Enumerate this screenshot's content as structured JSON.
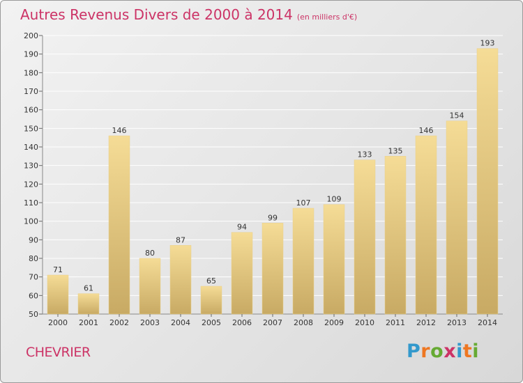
{
  "title": "Autres Revenus Divers de 2000 à 2014",
  "subtitle": "(en milliers d'€)",
  "commune": "CHEVRIER",
  "logo": {
    "text": "Proxiti",
    "letter_colors": [
      "#3399cc",
      "#ee7722",
      "#66aa33",
      "#cc3366",
      "#3399cc",
      "#ee7722",
      "#66aa33"
    ]
  },
  "colors": {
    "title": "#cc3366",
    "bar_top": "#f5dc96",
    "bar_bottom": "#c8aa64",
    "grid": "#ffffff",
    "axis_text": "#333333"
  },
  "chart_data": {
    "type": "bar",
    "title": "Autres Revenus Divers de 2000 à 2014",
    "subtitle": "(en milliers d'€)",
    "categories": [
      "2000",
      "2001",
      "2002",
      "2003",
      "2004",
      "2005",
      "2006",
      "2007",
      "2008",
      "2009",
      "2010",
      "2011",
      "2012",
      "2013",
      "2014"
    ],
    "values": [
      71,
      61,
      146,
      80,
      87,
      65,
      94,
      99,
      107,
      109,
      133,
      135,
      146,
      154,
      193
    ],
    "ylim": [
      50,
      200
    ],
    "yticks": [
      50,
      60,
      70,
      80,
      90,
      100,
      110,
      120,
      130,
      140,
      150,
      160,
      170,
      180,
      190,
      200
    ],
    "grid": true,
    "data_labels": true
  }
}
